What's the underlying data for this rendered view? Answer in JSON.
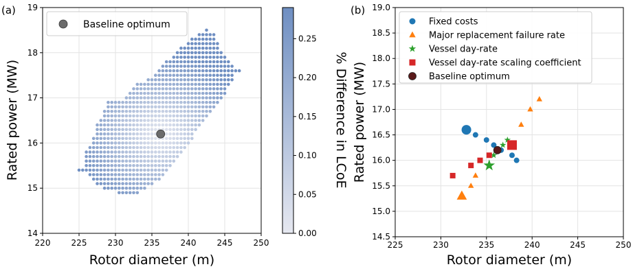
{
  "chart_data": [
    {
      "panel_label": "(a)",
      "type": "scatter",
      "xlabel": "Rotor diameter (m)",
      "ylabel": "Rated power (MW)",
      "xlim": [
        220,
        250
      ],
      "ylim": [
        14,
        19
      ],
      "xticks": [
        220,
        225,
        230,
        235,
        240,
        245,
        250
      ],
      "yticks": [
        14,
        15,
        16,
        17,
        18,
        19
      ],
      "grid": true,
      "legend": {
        "position": "top-left",
        "entries": [
          "Baseline optimum"
        ]
      },
      "colorbar": {
        "label": "% Difference in LCoE",
        "range": [
          0,
          0.29
        ],
        "ticks": [
          "0.00",
          "0.05",
          "0.10",
          "0.15",
          "0.20",
          "0.25"
        ],
        "color_low": "#e6e8f0",
        "color_high": "#6f8fc2"
      },
      "feasible_region": {
        "description_values": "dense grid of design points coloured by % difference in LCoE",
        "x_step": 0.5,
        "y_step": 0.1,
        "rows": [
          {
            "y": 14.9,
            "x_min": 230.5,
            "x_max": 233.0
          },
          {
            "y": 15.0,
            "x_min": 228.5,
            "x_max": 234.0
          },
          {
            "y": 15.1,
            "x_min": 227.5,
            "x_max": 235.0
          },
          {
            "y": 15.2,
            "x_min": 227.0,
            "x_max": 236.0
          },
          {
            "y": 15.3,
            "x_min": 226.5,
            "x_max": 236.5
          },
          {
            "y": 15.4,
            "x_min": 225.0,
            "x_max": 237.0
          },
          {
            "y": 15.5,
            "x_min": 226.0,
            "x_max": 237.5
          },
          {
            "y": 15.6,
            "x_min": 226.0,
            "x_max": 238.0
          },
          {
            "y": 15.7,
            "x_min": 226.0,
            "x_max": 238.5
          },
          {
            "y": 15.8,
            "x_min": 226.0,
            "x_max": 239.0
          },
          {
            "y": 15.9,
            "x_min": 226.5,
            "x_max": 239.5
          },
          {
            "y": 16.0,
            "x_min": 227.0,
            "x_max": 240.0
          },
          {
            "y": 16.1,
            "x_min": 227.0,
            "x_max": 240.5
          },
          {
            "y": 16.2,
            "x_min": 227.5,
            "x_max": 240.5
          },
          {
            "y": 16.3,
            "x_min": 227.5,
            "x_max": 241.0
          },
          {
            "y": 16.4,
            "x_min": 227.5,
            "x_max": 241.5
          },
          {
            "y": 16.5,
            "x_min": 228.0,
            "x_max": 242.0
          },
          {
            "y": 16.6,
            "x_min": 228.5,
            "x_max": 242.5
          },
          {
            "y": 16.7,
            "x_min": 228.5,
            "x_max": 243.0
          },
          {
            "y": 16.8,
            "x_min": 229.0,
            "x_max": 243.5
          },
          {
            "y": 16.9,
            "x_min": 229.0,
            "x_max": 244.0
          },
          {
            "y": 17.0,
            "x_min": 231.5,
            "x_max": 244.5
          },
          {
            "y": 17.1,
            "x_min": 232.0,
            "x_max": 245.0
          },
          {
            "y": 17.2,
            "x_min": 232.5,
            "x_max": 245.0
          },
          {
            "y": 17.3,
            "x_min": 233.0,
            "x_max": 245.5
          },
          {
            "y": 17.4,
            "x_min": 234.5,
            "x_max": 246.0
          },
          {
            "y": 17.5,
            "x_min": 235.5,
            "x_max": 246.0
          },
          {
            "y": 17.6,
            "x_min": 236.0,
            "x_max": 247.0
          },
          {
            "y": 17.7,
            "x_min": 236.5,
            "x_max": 246.0
          },
          {
            "y": 17.8,
            "x_min": 237.0,
            "x_max": 245.5
          },
          {
            "y": 17.9,
            "x_min": 238.0,
            "x_max": 245.0
          },
          {
            "y": 18.0,
            "x_min": 238.5,
            "x_max": 244.5
          },
          {
            "y": 18.1,
            "x_min": 239.0,
            "x_max": 244.0
          },
          {
            "y": 18.2,
            "x_min": 240.0,
            "x_max": 244.0
          },
          {
            "y": 18.3,
            "x_min": 240.5,
            "x_max": 243.5
          },
          {
            "y": 18.4,
            "x_min": 241.5,
            "x_max": 243.5
          },
          {
            "y": 18.5,
            "x_min": 242.5,
            "x_max": 242.5
          }
        ]
      },
      "baseline_optimum": {
        "x": 236.2,
        "y": 16.2
      }
    },
    {
      "panel_label": "(b)",
      "type": "scatter",
      "xlabel": "Rotor diameter (m)",
      "ylabel": "Rated power (MW)",
      "xlim": [
        225,
        250
      ],
      "ylim": [
        14.5,
        19.0
      ],
      "xticks": [
        225,
        230,
        235,
        240,
        245,
        250
      ],
      "yticks": [
        "14.5",
        "15.0",
        "15.5",
        "16.0",
        "16.5",
        "17.0",
        "17.5",
        "18.0",
        "18.5",
        "19.0"
      ],
      "grid": true,
      "legend": {
        "position": "top-left"
      },
      "series": [
        {
          "name": "Fixed costs",
          "marker": "circle",
          "color": "#1f77b4",
          "points": [
            {
              "x": 232.8,
              "y": 16.6,
              "size": 3
            },
            {
              "x": 233.8,
              "y": 16.5,
              "size": 1
            },
            {
              "x": 235.0,
              "y": 16.4,
              "size": 1
            },
            {
              "x": 235.8,
              "y": 16.3,
              "size": 1
            },
            {
              "x": 236.6,
              "y": 16.2,
              "size": 1
            },
            {
              "x": 237.8,
              "y": 16.1,
              "size": 1
            },
            {
              "x": 238.3,
              "y": 16.0,
              "size": 1
            }
          ]
        },
        {
          "name": "Major replacement failure rate",
          "marker": "triangle",
          "color": "#ff7f0e",
          "points": [
            {
              "x": 232.3,
              "y": 15.3,
              "size": 3
            },
            {
              "x": 233.3,
              "y": 15.5,
              "size": 1
            },
            {
              "x": 233.8,
              "y": 15.7,
              "size": 1
            },
            {
              "x": 238.8,
              "y": 16.7,
              "size": 1
            },
            {
              "x": 239.8,
              "y": 17.0,
              "size": 1
            },
            {
              "x": 240.8,
              "y": 17.2,
              "size": 1
            }
          ]
        },
        {
          "name": "Vessel day-rate",
          "marker": "star",
          "color": "#2ca02c",
          "points": [
            {
              "x": 235.3,
              "y": 15.9,
              "size": 3
            },
            {
              "x": 235.8,
              "y": 16.1,
              "size": 1
            },
            {
              "x": 236.8,
              "y": 16.3,
              "size": 1
            },
            {
              "x": 237.3,
              "y": 16.4,
              "size": 1
            }
          ]
        },
        {
          "name": "Vessel day-rate scaling coefficient",
          "marker": "square",
          "color": "#d62728",
          "points": [
            {
              "x": 231.3,
              "y": 15.7,
              "size": 1
            },
            {
              "x": 233.3,
              "y": 15.9,
              "size": 1
            },
            {
              "x": 234.3,
              "y": 16.0,
              "size": 1
            },
            {
              "x": 235.3,
              "y": 16.1,
              "size": 1
            },
            {
              "x": 237.8,
              "y": 16.3,
              "size": 3
            }
          ]
        },
        {
          "name": "Baseline optimum",
          "marker": "circle-dark",
          "color": "#5a1a1a",
          "points": [
            {
              "x": 236.2,
              "y": 16.2,
              "size": 2
            }
          ]
        }
      ]
    }
  ]
}
